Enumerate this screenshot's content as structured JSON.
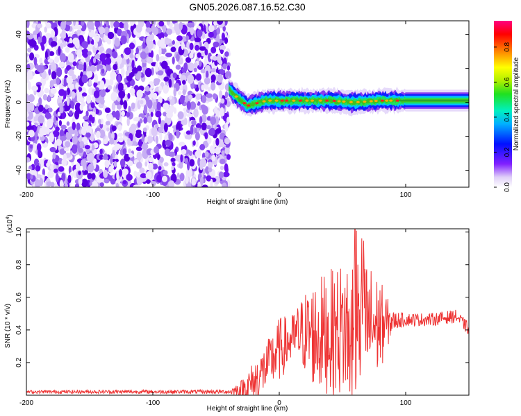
{
  "colors": {
    "snr_line": "#ee3333",
    "spec_purple": "#6a10ee",
    "spec_light": "#d8c8f8",
    "axis": "#000000",
    "background": "#ffffff"
  },
  "chart_data": [
    {
      "type": "heatmap",
      "title": "GN05.2026.087.16.52.C30",
      "xlabel": "Height of straight line (km)",
      "ylabel": "Frequency (Hz)",
      "xlim": [
        -200,
        150
      ],
      "ylim": [
        -50,
        48
      ],
      "xticks": [
        -200,
        -100,
        0,
        100
      ],
      "yticks": [
        -40,
        -20,
        0,
        20,
        40
      ],
      "noise_region": {
        "x_from": -200,
        "x_to": -40,
        "level": "random low-to-mid"
      },
      "signal_band": {
        "x_from": -40,
        "x_to": 150,
        "center_hz": [
          {
            "x": -40,
            "y": 8
          },
          {
            "x": -35,
            "y": 4
          },
          {
            "x": -30,
            "y": 1
          },
          {
            "x": -25,
            "y": -2
          },
          {
            "x": -20,
            "y": -1
          },
          {
            "x": -10,
            "y": 1
          },
          {
            "x": 0,
            "y": 1
          },
          {
            "x": 20,
            "y": 1
          },
          {
            "x": 40,
            "y": 1
          },
          {
            "x": 60,
            "y": 0
          },
          {
            "x": 80,
            "y": 1
          },
          {
            "x": 100,
            "y": 1
          },
          {
            "x": 150,
            "y": 1
          }
        ],
        "half_width_hz": 4
      },
      "colorbar": {
        "label": "Normalized spectral amplitude",
        "min": 0.0,
        "max": 0.95,
        "ticks": [
          "0.0",
          "0.2",
          "0.4",
          "0.6",
          "0.8"
        ]
      }
    },
    {
      "type": "line",
      "title": "",
      "xlabel": "Height of straight line (km)",
      "ylabel": "SNR (10 * v/v)",
      "ymultiplier": "(x10",
      "ymultiplier_exp": "4",
      "xlim": [
        -200,
        150
      ],
      "ylim": [
        0,
        1.02
      ],
      "xticks": [
        -200,
        -100,
        0,
        100
      ],
      "yticks": [
        0.2,
        0.4,
        0.6,
        0.8,
        1.0
      ],
      "ytick_labels": [
        "0.2",
        "0.4",
        "0.6",
        "0.8",
        "1.0"
      ],
      "series": [
        {
          "envelope": [
            {
              "x": -200,
              "base": 0.02,
              "amp": 0.01
            },
            {
              "x": -40,
              "base": 0.02,
              "amp": 0.012
            },
            {
              "x": -30,
              "base": 0.03,
              "amp": 0.06
            },
            {
              "x": -20,
              "base": 0.06,
              "amp": 0.14
            },
            {
              "x": -10,
              "base": 0.16,
              "amp": 0.15
            },
            {
              "x": 0,
              "base": 0.26,
              "amp": 0.2
            },
            {
              "x": 10,
              "base": 0.33,
              "amp": 0.15
            },
            {
              "x": 20,
              "base": 0.36,
              "amp": 0.25
            },
            {
              "x": 30,
              "base": 0.33,
              "amp": 0.36
            },
            {
              "x": 40,
              "base": 0.35,
              "amp": 0.38
            },
            {
              "x": 50,
              "base": 0.36,
              "amp": 0.42
            },
            {
              "x": 60,
              "base": 0.37,
              "amp": 0.5
            },
            {
              "x": 70,
              "base": 0.39,
              "amp": 0.4
            },
            {
              "x": 80,
              "base": 0.4,
              "amp": 0.28
            },
            {
              "x": 90,
              "base": 0.45,
              "amp": 0.06
            },
            {
              "x": 100,
              "base": 0.46,
              "amp": 0.04
            },
            {
              "x": 120,
              "base": 0.46,
              "amp": 0.04
            },
            {
              "x": 140,
              "base": 0.48,
              "amp": 0.04
            },
            {
              "x": 150,
              "base": 0.4,
              "amp": 0.04
            }
          ]
        }
      ]
    }
  ]
}
